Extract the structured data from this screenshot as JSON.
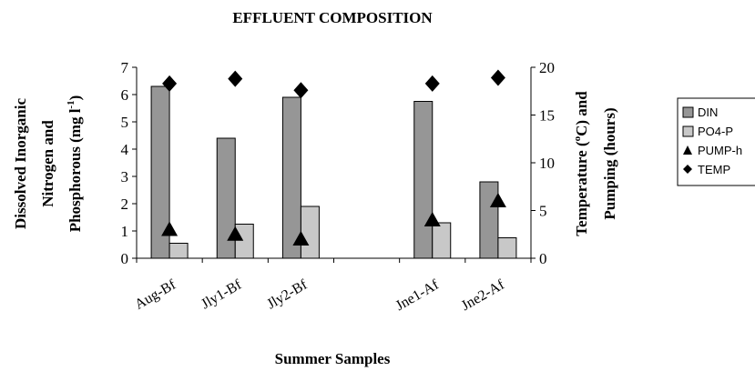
{
  "chart_data": {
    "type": "bar",
    "title": "EFFLUENT COMPOSITION",
    "xlabel": "Summer Samples",
    "ylabel_left_lines": [
      "Dissolved Inorganic",
      "Nitrogen and",
      "Phosphorous (mg l",
      "-1",
      ")"
    ],
    "ylabel_right_lines": [
      "Temperature (",
      "o",
      "C) and",
      "Pumping (hours)"
    ],
    "ylim_left": [
      0,
      7
    ],
    "ylim_right": [
      0,
      20
    ],
    "left_ticks": [
      "0",
      "1",
      "2",
      "3",
      "4",
      "5",
      "6",
      "7"
    ],
    "right_ticks": [
      "0",
      "5",
      "10",
      "15",
      "20"
    ],
    "categories": [
      "Aug-Bf",
      "Jly1-Bf",
      "Jly2-Bf",
      "",
      "Jne1-Af",
      "Jne2-Af"
    ],
    "series": [
      {
        "name": "DIN",
        "kind": "bar",
        "axis": "left",
        "color": "#969696",
        "values": [
          6.3,
          4.4,
          5.9,
          null,
          5.75,
          2.8
        ]
      },
      {
        "name": "PO4-P",
        "kind": "bar",
        "axis": "left",
        "color": "#c8c8c8",
        "values": [
          0.55,
          1.25,
          1.9,
          null,
          1.3,
          0.75
        ]
      },
      {
        "name": "PUMP-h",
        "kind": "marker",
        "marker": "triangle",
        "axis": "right",
        "color": "#000000",
        "values": [
          3.0,
          2.5,
          2.0,
          null,
          4.0,
          6.0
        ]
      },
      {
        "name": "TEMP",
        "kind": "marker",
        "marker": "diamond",
        "axis": "right",
        "color": "#000000",
        "values": [
          18.3,
          18.8,
          17.6,
          null,
          18.3,
          18.9
        ]
      }
    ],
    "legend_position": "right",
    "grid": false
  }
}
